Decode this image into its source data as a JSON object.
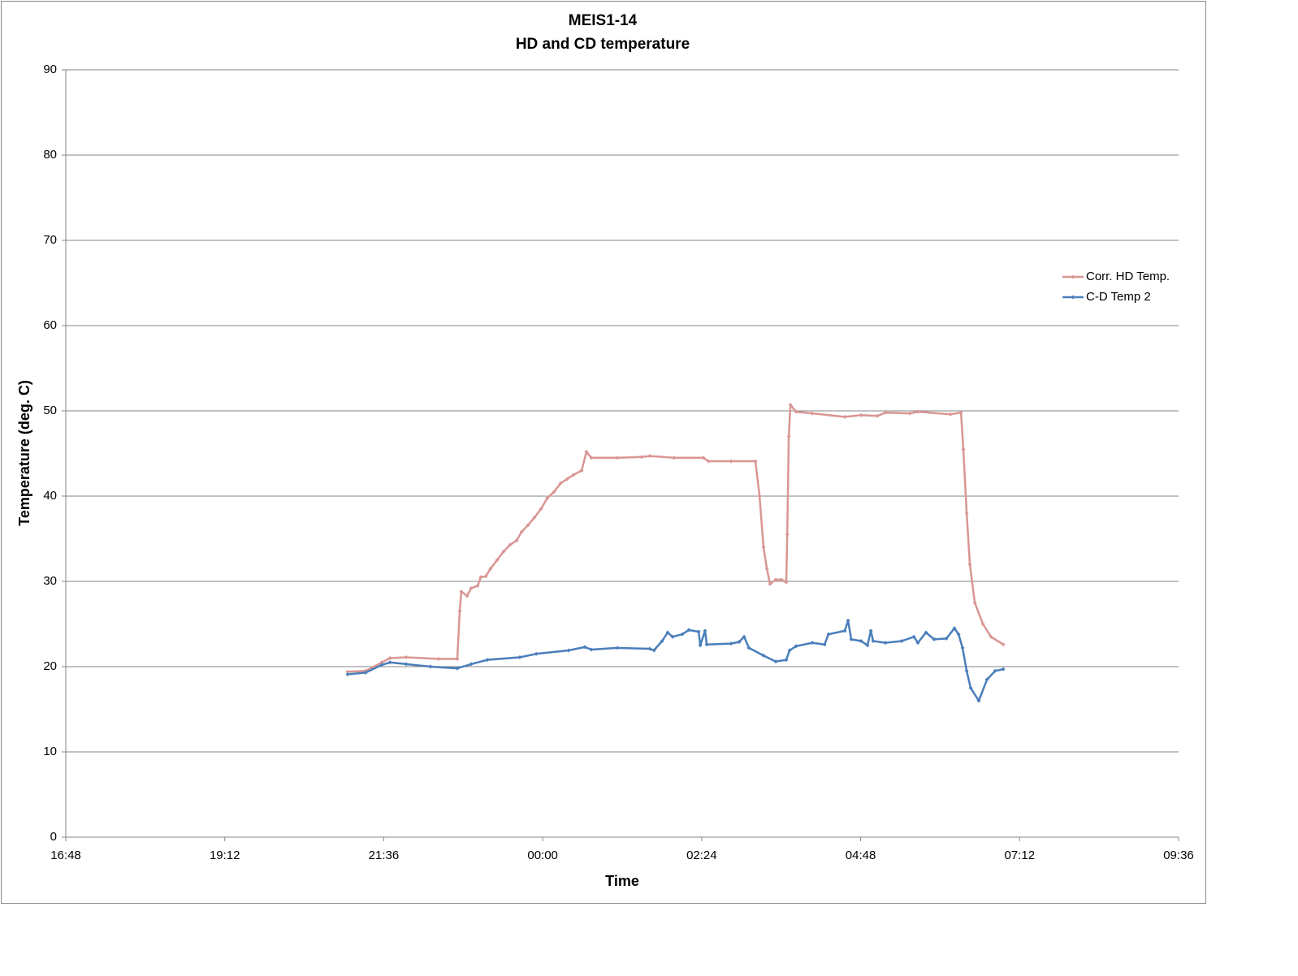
{
  "chart_data": {
    "type": "line",
    "title": "MEIS1-14",
    "subtitle": "HD and CD temperature",
    "x_label": "Time",
    "y_label": "Temperature (deg. C)",
    "xlim": [
      0.7,
      1.4
    ],
    "xticks": [
      {
        "value": 0.7,
        "label": "16:48"
      },
      {
        "value": 0.8,
        "label": "19:12"
      },
      {
        "value": 0.9,
        "label": "21:36"
      },
      {
        "value": 1.0,
        "label": "00:00"
      },
      {
        "value": 1.1,
        "label": "02:24"
      },
      {
        "value": 1.2,
        "label": "04:48"
      },
      {
        "value": 1.3,
        "label": "07:12"
      },
      {
        "value": 1.4,
        "label": "09:36"
      }
    ],
    "ylim": [
      0,
      90
    ],
    "yticks": [
      0,
      10,
      20,
      30,
      40,
      50,
      60,
      70,
      80,
      90
    ],
    "grid": true,
    "legend": "right",
    "series": [
      {
        "name": "Corr. HD Temp.",
        "color": "#d99694",
        "x": [
          0.8773,
          0.8886,
          0.8988,
          0.9039,
          0.9141,
          0.9345,
          0.9463,
          0.9478,
          0.9488,
          0.9524,
          0.955,
          0.9591,
          0.9611,
          0.9642,
          0.9672,
          0.9713,
          0.9754,
          0.9795,
          0.9836,
          0.9867,
          0.9908,
          0.9948,
          0.9989,
          1.003,
          1.0071,
          1.0112,
          1.0153,
          1.0194,
          1.0245,
          1.0275,
          1.0306,
          1.047,
          1.0623,
          1.0674,
          1.0827,
          1.1011,
          1.1042,
          1.1185,
          1.1338,
          1.1364,
          1.1389,
          1.141,
          1.143,
          1.1466,
          1.1502,
          1.1532,
          1.1538,
          1.1548,
          1.1558,
          1.1594,
          1.1696,
          1.19,
          1.2003,
          1.2105,
          1.2156,
          1.2309,
          1.236,
          1.2565,
          1.2631,
          1.2646,
          1.2667,
          1.2687,
          1.2718,
          1.2769,
          1.282,
          1.2897
        ],
        "values": [
          19.4,
          19.5,
          20.5,
          21.0,
          21.1,
          20.9,
          20.9,
          26.5,
          28.8,
          28.3,
          29.2,
          29.5,
          30.5,
          30.6,
          31.5,
          32.5,
          33.5,
          34.3,
          34.8,
          35.8,
          36.6,
          37.5,
          38.5,
          39.8,
          40.5,
          41.5,
          42.0,
          42.5,
          43.0,
          45.2,
          44.5,
          44.5,
          44.6,
          44.7,
          44.5,
          44.5,
          44.1,
          44.1,
          44.1,
          40.0,
          34.0,
          31.5,
          29.7,
          30.2,
          30.2,
          29.9,
          35.5,
          47.0,
          50.7,
          49.9,
          49.7,
          49.3,
          49.5,
          49.4,
          49.8,
          49.7,
          49.9,
          49.6,
          49.8,
          45.5,
          38.0,
          32.0,
          27.5,
          25.0,
          23.5,
          22.6
        ]
      },
      {
        "name": "C-D Temp 2",
        "color": "#4a7ebb",
        "x": [
          0.8773,
          0.8886,
          0.8988,
          0.9039,
          0.9141,
          0.9294,
          0.9463,
          0.955,
          0.9652,
          0.9856,
          0.9959,
          1.0163,
          1.0265,
          1.0306,
          1.047,
          1.0674,
          1.07,
          1.0751,
          1.0786,
          1.0817,
          1.0878,
          1.0919,
          1.0981,
          1.0991,
          1.1021,
          1.1032,
          1.1185,
          1.1236,
          1.1267,
          1.1297,
          1.1389,
          1.1466,
          1.1532,
          1.1553,
          1.1594,
          1.1696,
          1.1773,
          1.1798,
          1.19,
          1.1921,
          1.1941,
          1.2003,
          1.2043,
          1.2064,
          1.2079,
          1.2156,
          1.2258,
          1.2335,
          1.236,
          1.2411,
          1.2462,
          1.2539,
          1.259,
          1.2616,
          1.2641,
          1.2667,
          1.2692,
          1.2743,
          1.2795,
          1.2846,
          1.2897
        ],
        "values": [
          19.1,
          19.3,
          20.2,
          20.5,
          20.3,
          20.0,
          19.8,
          20.3,
          20.8,
          21.1,
          21.5,
          21.9,
          22.3,
          22.0,
          22.2,
          22.1,
          21.9,
          23.0,
          24.0,
          23.5,
          23.8,
          24.3,
          24.1,
          22.5,
          24.2,
          22.6,
          22.7,
          22.9,
          23.5,
          22.2,
          21.3,
          20.6,
          20.8,
          21.9,
          22.4,
          22.8,
          22.6,
          23.8,
          24.2,
          25.4,
          23.2,
          23.0,
          22.5,
          24.2,
          23.0,
          22.8,
          23.0,
          23.5,
          22.8,
          24.0,
          23.2,
          23.3,
          24.5,
          23.8,
          22.2,
          19.5,
          17.5,
          16.0,
          18.5,
          19.5,
          19.7
        ]
      }
    ]
  }
}
